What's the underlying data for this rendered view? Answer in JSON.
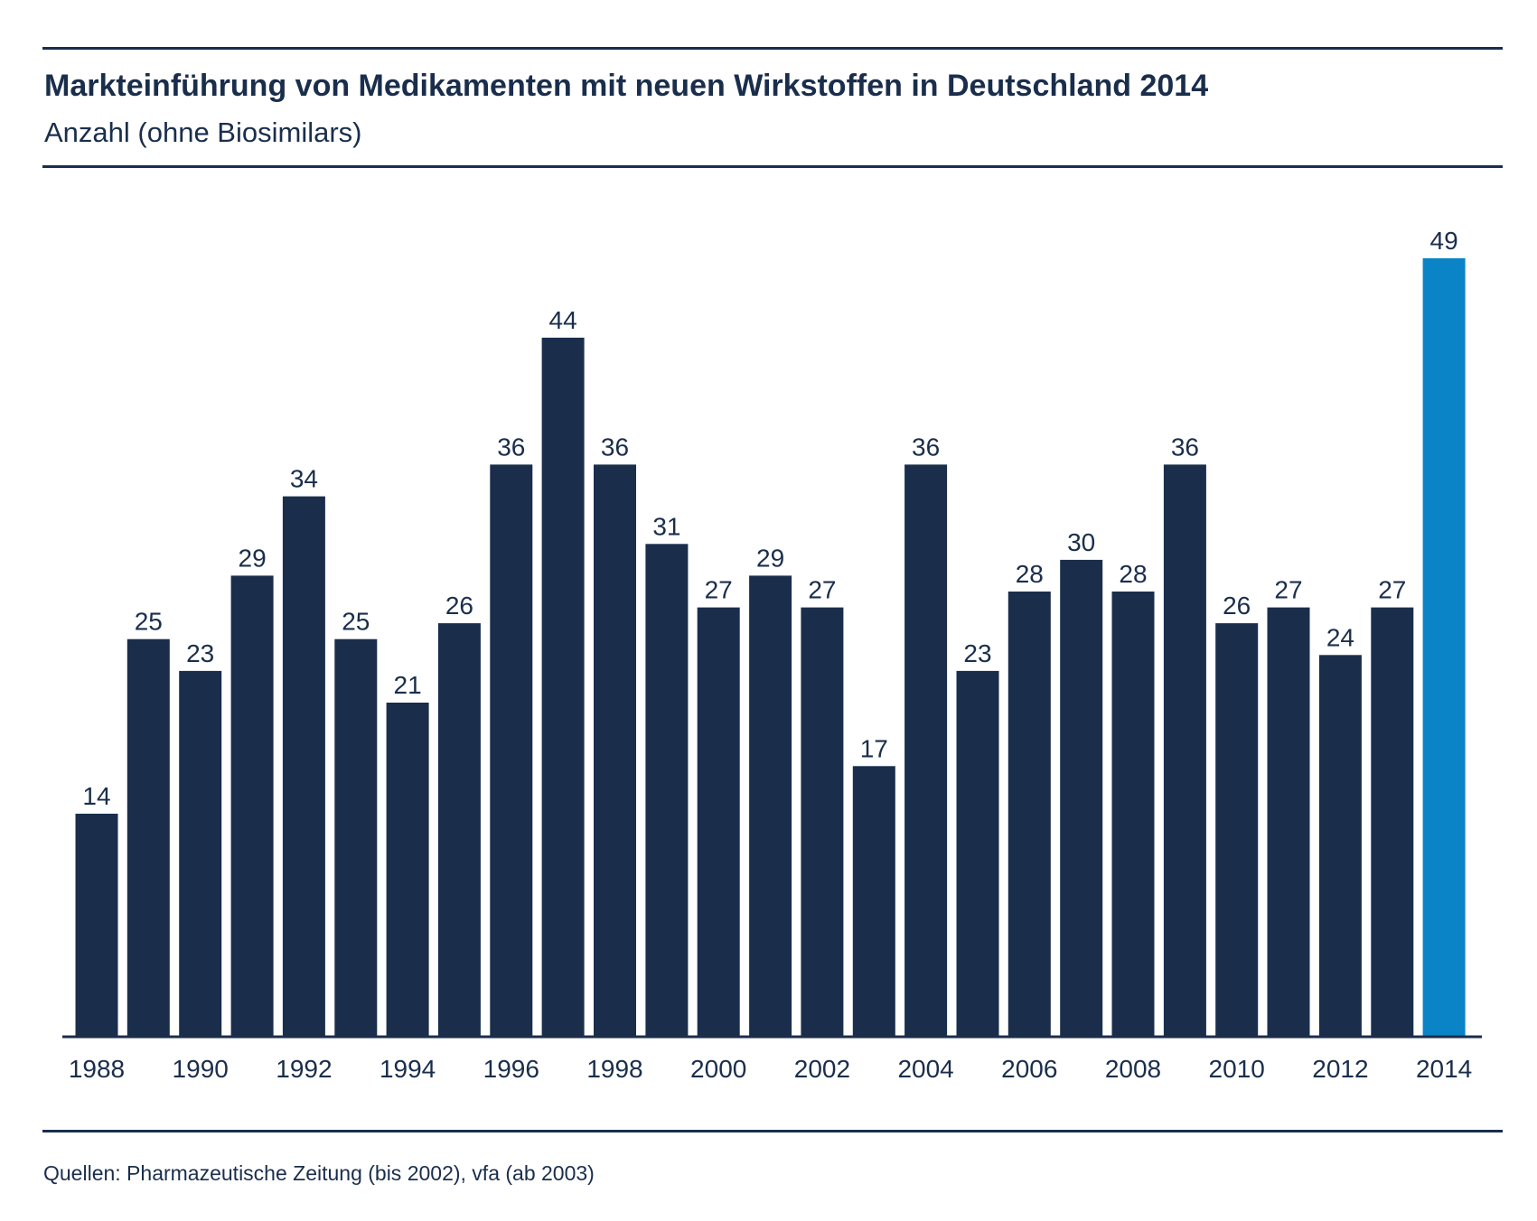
{
  "header": {
    "title": "Markteinführung von Medikamenten mit neuen Wirkstoffen in Deutschland 2014",
    "subtitle": "Anzahl (ohne Biosimilars)"
  },
  "footer": {
    "source": "Quellen: Pharmazeutische Zeitung (bis 2002), vfa (ab 2003)"
  },
  "colors": {
    "bar": "#1a2e4c",
    "highlight": "#0a84c6",
    "text": "#1a2e4c"
  },
  "chart_data": {
    "type": "bar",
    "title": "Markteinführung von Medikamenten mit neuen Wirkstoffen in Deutschland 2014",
    "subtitle": "Anzahl (ohne Biosimilars)",
    "categories": [
      "1988",
      "1989",
      "1990",
      "1991",
      "1992",
      "1993",
      "1994",
      "1995",
      "1996",
      "1997",
      "1998",
      "1999",
      "2000",
      "2001",
      "2002",
      "2003",
      "2004",
      "2005",
      "2006",
      "2007",
      "2008",
      "2009",
      "2010",
      "2011",
      "2012",
      "2013",
      "2014"
    ],
    "values": [
      14,
      25,
      23,
      29,
      34,
      25,
      21,
      26,
      36,
      44,
      36,
      31,
      27,
      29,
      27,
      17,
      36,
      23,
      28,
      30,
      28,
      36,
      26,
      27,
      24,
      27,
      49
    ],
    "tick_labels": [
      "1988",
      "1990",
      "1992",
      "1994",
      "1996",
      "1998",
      "2000",
      "2002",
      "2004",
      "2006",
      "2008",
      "2010",
      "2012",
      "2014"
    ],
    "highlighted_category": "2014",
    "ylim": [
      0,
      49
    ],
    "xlabel": "",
    "ylabel": "",
    "grid": false,
    "legend": "none",
    "data_labels": true
  }
}
